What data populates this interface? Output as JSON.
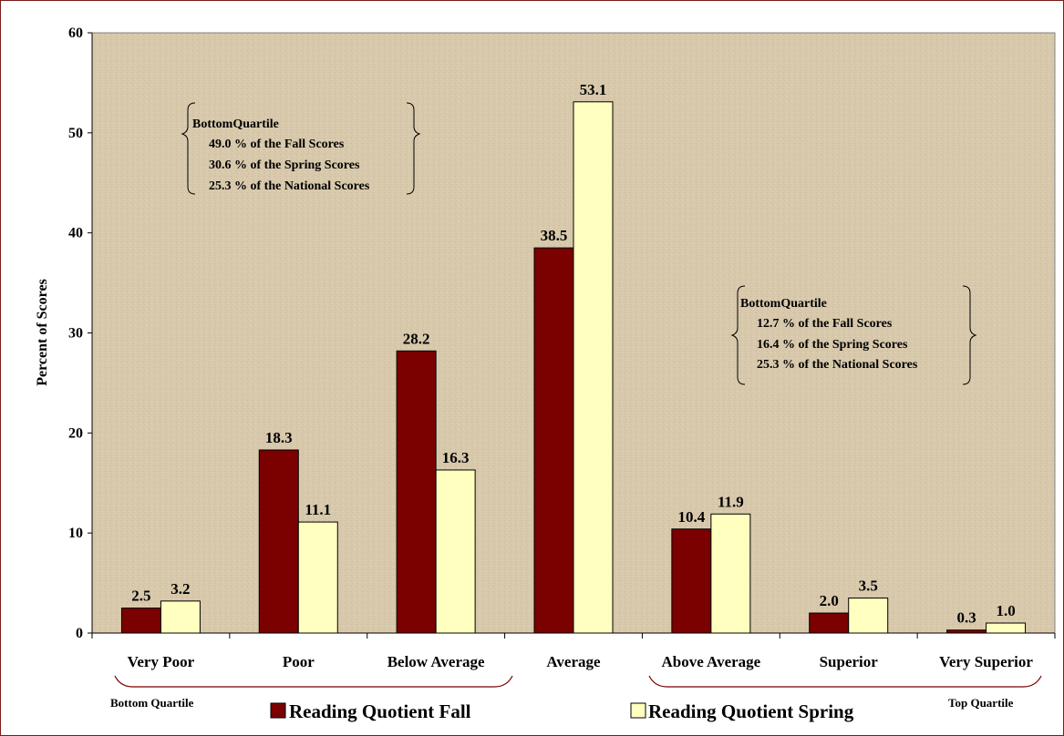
{
  "chart_data": {
    "type": "bar",
    "title": "",
    "xlabel": "",
    "ylabel": "Percent of Scores",
    "ylim": [
      0,
      60
    ],
    "yticks": [
      "0",
      "10",
      "20",
      "30",
      "40",
      "50",
      "60"
    ],
    "grid": false,
    "legend_position": "bottom",
    "categories": [
      "Very Poor",
      "Poor",
      "Below Average",
      "Average",
      "Above Average",
      "Superior",
      "Very Superior"
    ],
    "series": [
      {
        "name": "Reading Quotient Fall",
        "color": "#7b0000",
        "values": [
          2.5,
          18.3,
          28.2,
          38.5,
          10.4,
          2.0,
          0.3
        ],
        "labels": [
          "2.5",
          "18.3",
          "28.2",
          "38.5",
          "10.4",
          "2.0",
          "0.3"
        ]
      },
      {
        "name": "Reading Quotient Spring",
        "color": "#ffffc0",
        "values": [
          3.2,
          11.1,
          16.3,
          53.1,
          11.9,
          3.5,
          1.0
        ],
        "labels": [
          "3.2",
          "11.1",
          "16.3",
          "53.1",
          "11.9",
          "3.5",
          "1.0"
        ]
      }
    ],
    "plot_background": "#d8c9ac",
    "annotations": {
      "left_box": [
        "BottomQuartile",
        "49.0 % of the Fall Scores",
        "30.6 % of the Spring Scores",
        "25.3 % of the National Scores"
      ],
      "right_box": [
        "BottomQuartile",
        "12.7 % of the Fall Scores",
        "16.4 % of the Spring Scores",
        "25.3 % of the National Scores"
      ],
      "bottom_left": "Bottom Quartile",
      "bottom_right": "Top Quartile"
    }
  }
}
